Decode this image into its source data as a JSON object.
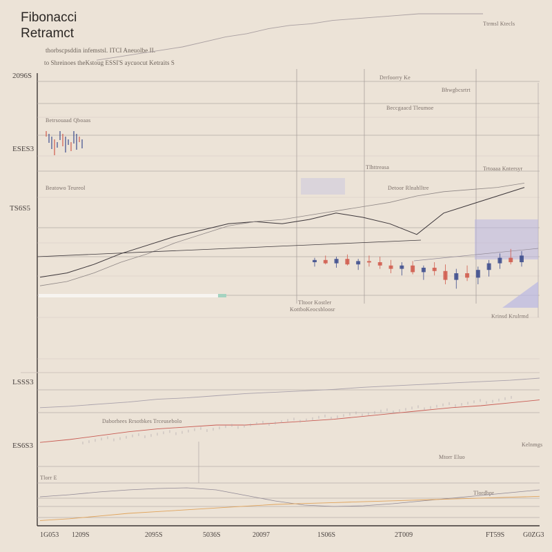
{
  "page": {
    "title": "Fibonacci Retramct",
    "subtitle_1": "thorbscpsddin infemstsl. ITCI Aneuolbe II.",
    "subtitle_2": "to Shreinoes theKstoug ESSI'S aycuocut Ketraits S"
  },
  "colors": {
    "background": "#ece3d7",
    "candle_up": "#3a4a8c",
    "candle_down": "#d0584a",
    "band": "#b9b6e2",
    "line_red": "#c85a52",
    "line_dark": "#3a3438",
    "line_orange": "#e0a35a"
  },
  "annotations": {
    "top_right": "Ttrmsl Ktecls",
    "r1": "Drrfoorry Ke",
    "r2": "Bhwgbcsrtrt",
    "r3": "Beccgaacd Tleumoe",
    "r4": "Trtoaaa Kntersyr",
    "r5": "Tlhttreasa",
    "r6": "Detoor Rlnahlltre",
    "r7": "Krinsd Krulrmd",
    "l1": "Betrsouaad Qboaas",
    "l2": "Beatowo Teureol",
    "m1": "Tltoor Kostler",
    "m2": "KottboKeocsbloosr",
    "b1": "Mtorr Eluo",
    "b2": "Tlordbpr",
    "b3": "Tlorr E",
    "b4": "Kelnmgs",
    "b5": "Daborhees Rrsotbkes Trceusebolo"
  },
  "chart_data": [
    {
      "type": "line",
      "title": "",
      "y_ticks": [
        "2096S",
        "ESES3",
        "TS6S5"
      ],
      "grid": true,
      "fib_levels": [
        0.0,
        0.236,
        0.382,
        0.5,
        0.618,
        0.786,
        1.0
      ],
      "series": [
        {
          "name": "",
          "values": [
            0.22,
            0.24,
            0.28,
            0.33,
            0.37,
            0.41,
            0.44,
            0.47,
            0.48,
            0.47,
            0.49,
            0.52,
            0.5,
            0.47,
            0.42,
            0.52,
            0.56,
            0.6,
            0.64
          ]
        },
        {
          "name": "",
          "values": [
            0.18,
            0.2,
            0.24,
            0.29,
            0.33,
            0.38,
            0.42,
            0.46,
            0.48,
            0.49,
            0.51,
            0.53,
            0.55,
            0.57,
            0.6,
            0.62,
            0.63,
            0.64,
            0.66
          ]
        },
        {
          "name": "",
          "values": [
            0.72,
            0.74,
            0.76,
            0.78,
            0.8,
            0.83,
            0.86,
            0.88,
            0.91,
            0.93,
            0.94,
            0.96,
            0.97,
            0.98,
            0.99,
            1.0,
            1.0,
            1.0,
            1.0
          ]
        }
      ],
      "candles": [
        {
          "o": 0.5,
          "h": 0.54,
          "l": 0.46,
          "c": 0.52
        },
        {
          "o": 0.52,
          "h": 0.56,
          "l": 0.48,
          "c": 0.49
        },
        {
          "o": 0.49,
          "h": 0.55,
          "l": 0.45,
          "c": 0.53
        },
        {
          "o": 0.53,
          "h": 0.57,
          "l": 0.47,
          "c": 0.48
        },
        {
          "o": 0.48,
          "h": 0.53,
          "l": 0.43,
          "c": 0.51
        },
        {
          "o": 0.51,
          "h": 0.56,
          "l": 0.46,
          "c": 0.5
        },
        {
          "o": 0.5,
          "h": 0.55,
          "l": 0.44,
          "c": 0.47
        },
        {
          "o": 0.47,
          "h": 0.52,
          "l": 0.4,
          "c": 0.44
        },
        {
          "o": 0.44,
          "h": 0.5,
          "l": 0.38,
          "c": 0.47
        },
        {
          "o": 0.47,
          "h": 0.51,
          "l": 0.39,
          "c": 0.41
        },
        {
          "o": 0.41,
          "h": 0.47,
          "l": 0.34,
          "c": 0.45
        },
        {
          "o": 0.45,
          "h": 0.5,
          "l": 0.38,
          "c": 0.42
        },
        {
          "o": 0.42,
          "h": 0.48,
          "l": 0.3,
          "c": 0.34
        },
        {
          "o": 0.34,
          "h": 0.44,
          "l": 0.26,
          "c": 0.4
        },
        {
          "o": 0.4,
          "h": 0.47,
          "l": 0.33,
          "c": 0.36
        },
        {
          "o": 0.36,
          "h": 0.46,
          "l": 0.3,
          "c": 0.43
        },
        {
          "o": 0.43,
          "h": 0.52,
          "l": 0.37,
          "c": 0.49
        },
        {
          "o": 0.49,
          "h": 0.58,
          "l": 0.44,
          "c": 0.54
        },
        {
          "o": 0.54,
          "h": 0.62,
          "l": 0.48,
          "c": 0.5
        },
        {
          "o": 0.5,
          "h": 0.6,
          "l": 0.46,
          "c": 0.56
        }
      ]
    },
    {
      "type": "line",
      "title": "",
      "y_ticks": [
        "LSSS3",
        "ES6S3"
      ],
      "x_ticks": [
        "1G053",
        "1209S",
        "2095S",
        "5036S",
        "20097",
        "1S06S",
        "2T009",
        "FT59S",
        "G0ZG3"
      ],
      "grid": true,
      "series": [
        {
          "name": "",
          "values": [
            0.58,
            0.6,
            0.63,
            0.66,
            0.7,
            0.72,
            0.75,
            0.78,
            0.8,
            0.82,
            0.84,
            0.87,
            0.89,
            0.91,
            0.93,
            0.95,
            0.97,
            1.0
          ]
        },
        {
          "name": "",
          "values": [
            0.42,
            0.45,
            0.49,
            0.53,
            0.56,
            0.58,
            0.6,
            0.6,
            0.62,
            0.64,
            0.66,
            0.69,
            0.72,
            0.75,
            0.78,
            0.8,
            0.83,
            0.86
          ]
        },
        {
          "name": "",
          "values": [
            0.2,
            0.23,
            0.27,
            0.3,
            0.32,
            0.33,
            0.3,
            0.22,
            0.14,
            0.08,
            0.06,
            0.07,
            0.1,
            0.14,
            0.18,
            0.22,
            0.26,
            0.3
          ]
        },
        {
          "name": "",
          "values": [
            0.12,
            0.14,
            0.17,
            0.2,
            0.22,
            0.24,
            0.26,
            0.28,
            0.3,
            0.31,
            0.32,
            0.33,
            0.34,
            0.35,
            0.36,
            0.37,
            0.38,
            0.39
          ]
        }
      ]
    }
  ]
}
